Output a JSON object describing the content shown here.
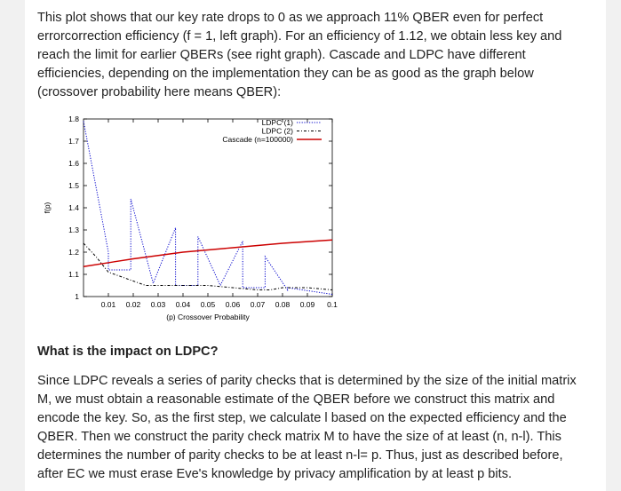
{
  "intro_text": " This plot shows that our key rate drops to 0 as we approach 11% QBER even for perfect errorcorrection efficiency (f = 1, left graph). For an efficiency of 1.12, we obtain less key and reach the limit for earlier QBERs (see right graph).  Cascade and LDPC have different efficiencies, depending on the implementation they can be as good as the graph below (crossover probability here means QBER):",
  "section_heading": "What is the impact on LDPC?",
  "body_text": "Since LDPC reveals a series of parity checks that is determined by the size of the initial matrix M, we must obtain a reasonable estimate of the QBER before we construct this matrix and encode the key. So, as the first step, we calculate l based on the expected efficiency and the QBER. Then we construct the parity check matrix M to have the size of at least (n, n-l). This determines the number of parity checks to be at least n-l= p. Thus, just as described before, after EC we must erase Eve's knowledge by privacy amplification by at least p bits.",
  "chart_data": {
    "type": "line",
    "xlabel": "(p) Crossover Probability",
    "ylabel": "f(p)",
    "xlim": [
      0.0,
      0.1
    ],
    "ylim": [
      1.0,
      1.8
    ],
    "x_ticks": [
      "0.01",
      "0.02",
      "0.03",
      "0.04",
      "0.05",
      "0.06",
      "0.07",
      "0.08",
      "0.09",
      "0.1"
    ],
    "y_ticks": [
      "1",
      "1.1",
      "1.2",
      "1.3",
      "1.4",
      "1.5",
      "1.6",
      "1.7",
      "1.8"
    ],
    "legend_position": "top-right",
    "grid": false,
    "series": [
      {
        "name": "LDPC (1)",
        "color": "#0000cc",
        "style": "dotted",
        "x": [
          0.0,
          0.01,
          0.01,
          0.019,
          0.019,
          0.028,
          0.028,
          0.037,
          0.037,
          0.046,
          0.046,
          0.055,
          0.055,
          0.064,
          0.064,
          0.073,
          0.073,
          0.082,
          0.082,
          0.1
        ],
        "y": [
          1.79,
          1.2,
          1.12,
          1.12,
          1.44,
          1.06,
          1.06,
          1.31,
          1.05,
          1.05,
          1.27,
          1.05,
          1.05,
          1.25,
          1.04,
          1.04,
          1.18,
          1.03,
          1.04,
          1.01
        ]
      },
      {
        "name": "LDPC (2)",
        "color": "#000000",
        "style": "dashdot",
        "x": [
          0.0,
          0.005,
          0.01,
          0.015,
          0.02,
          0.025,
          0.03,
          0.04,
          0.05,
          0.06,
          0.07,
          0.075,
          0.08,
          0.09,
          0.1
        ],
        "y": [
          1.24,
          1.18,
          1.11,
          1.09,
          1.07,
          1.05,
          1.05,
          1.05,
          1.05,
          1.04,
          1.03,
          1.03,
          1.04,
          1.04,
          1.03
        ]
      },
      {
        "name": "Cascade (n=100000)",
        "color": "#cc0000",
        "style": "solid",
        "x": [
          0.0,
          0.02,
          0.04,
          0.06,
          0.08,
          0.1
        ],
        "y": [
          1.135,
          1.17,
          1.2,
          1.22,
          1.24,
          1.255
        ]
      }
    ]
  }
}
